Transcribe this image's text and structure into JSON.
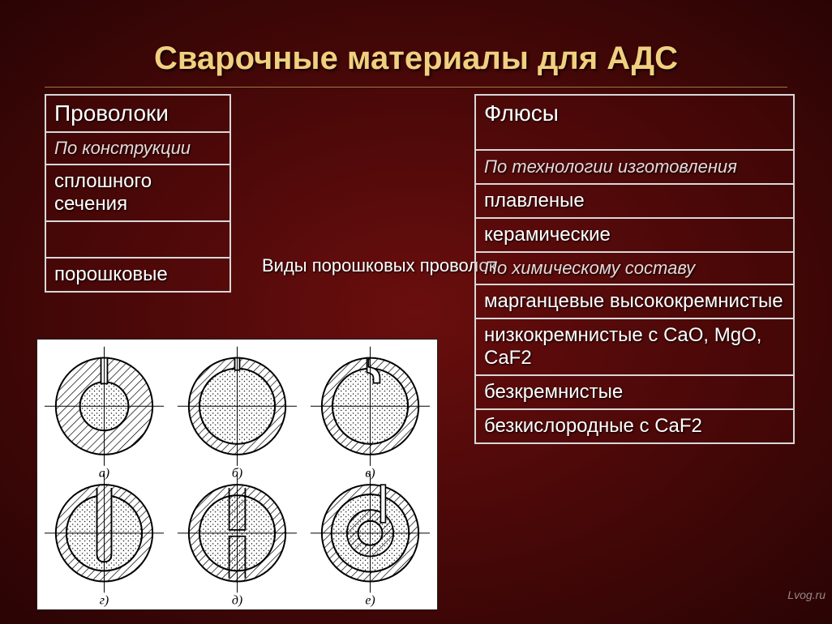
{
  "title": "Сварочные материалы для АДС",
  "colors": {
    "title": "#f0d080",
    "border": "#d8d8d8",
    "text": "#ffffff",
    "bg_center": "#6a0e0e",
    "bg_edge": "#2a0404",
    "diagram_bg": "#ffffff",
    "diagram_stroke": "#000000"
  },
  "left": {
    "header": "Проволоки",
    "sub": "По конструкции",
    "items": [
      "сплошного сечения",
      "порошковые"
    ]
  },
  "right": {
    "header": "Флюсы",
    "groups": [
      {
        "sub": "По технологии изготовления",
        "items": [
          "плавленые",
          "керамические"
        ]
      },
      {
        "sub": "По химическому составу",
        "items": [
          "марганцевые высококремнистые",
          "низкокремнистые с CaO, MgO, CaF2",
          "безкремнистые",
          "безкислородные c CaF2"
        ]
      }
    ]
  },
  "mid_label": "Виды порошковых проволок",
  "diagram": {
    "cols": 3,
    "rows": 2,
    "labels": [
      "а)",
      "б)",
      "в)",
      "г)",
      "д)",
      "е)"
    ],
    "label_fontsize": 16,
    "outer_r": 60,
    "cross_extend": 14,
    "stroke_width": 2,
    "hatch_spacing": 7
  },
  "font": {
    "title_size": 40,
    "cell_size": 24,
    "header_size": 28,
    "sub_size": 22,
    "mid_size": 22
  },
  "watermark": "Lvog.ru"
}
